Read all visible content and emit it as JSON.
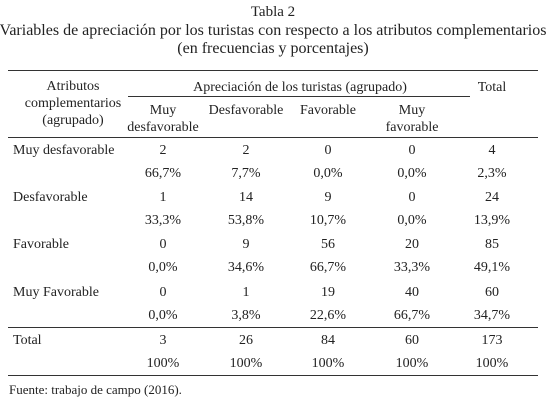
{
  "title": [
    "Tabla 2",
    "Variables de apreciación por los turistas con respecto a los atributos complementarios",
    "(en frecuencias y porcentajes)"
  ],
  "table": {
    "header": {
      "row_label": "Atributos complementarios (agrupado)",
      "group": "Apreciación de los turistas (agrupado)",
      "columns": [
        "Muy desfavorable",
        "Desfavorable",
        "Favorable",
        "Muy favorable"
      ],
      "total": "Total"
    },
    "rows": [
      {
        "label": "Muy desfavorable",
        "counts": [
          2,
          2,
          0,
          0,
          4
        ],
        "percents": [
          "66,7%",
          "7,7%",
          "0,0%",
          "0,0%",
          "2,3%"
        ]
      },
      {
        "label": "Desfavorable",
        "counts": [
          1,
          14,
          9,
          0,
          24
        ],
        "percents": [
          "33,3%",
          "53,8%",
          "10,7%",
          "0,0%",
          "13,9%"
        ]
      },
      {
        "label": "Favorable",
        "counts": [
          0,
          9,
          56,
          20,
          85
        ],
        "percents": [
          "0,0%",
          "34,6%",
          "66,7%",
          "33,3%",
          "49,1%"
        ]
      },
      {
        "label": "Muy Favorable",
        "counts": [
          0,
          1,
          19,
          40,
          60
        ],
        "percents": [
          "0,0%",
          "3,8%",
          "22,6%",
          "66,7%",
          "34,7%"
        ]
      },
      {
        "label": "Total",
        "counts": [
          3,
          26,
          84,
          60,
          173
        ],
        "percents": [
          "100%",
          "100%",
          "100%",
          "100%",
          "100%"
        ]
      }
    ]
  },
  "source": "Fuente: trabajo de campo (2016)."
}
